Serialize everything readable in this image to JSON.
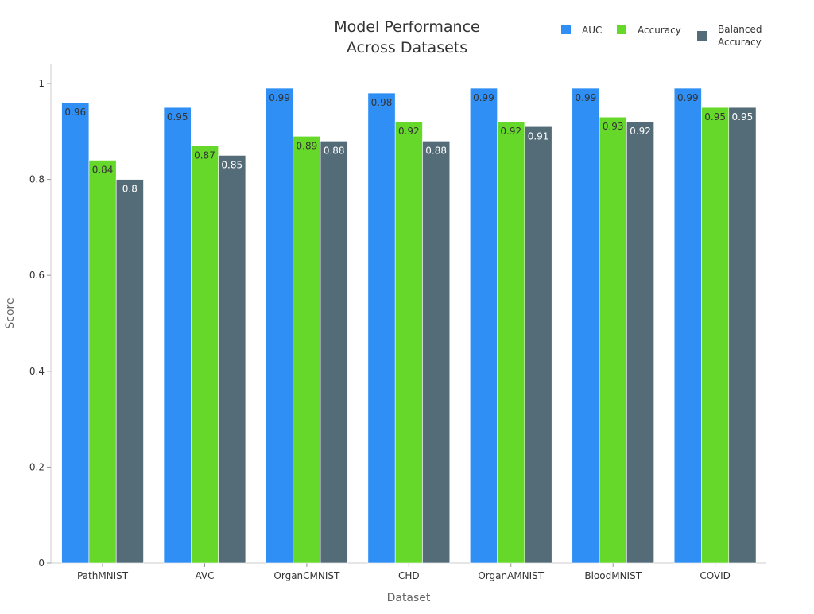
{
  "chart_data": {
    "type": "bar",
    "title_lines": [
      "Model Performance",
      "Across Datasets"
    ],
    "xlabel": "Dataset",
    "ylabel": "Score",
    "ylim": [
      0,
      1
    ],
    "yticks": [
      {
        "value": 0,
        "label": "0"
      },
      {
        "value": 0.2,
        "label": "0.2"
      },
      {
        "value": 0.4,
        "label": "0.4"
      },
      {
        "value": 0.6,
        "label": "0.6"
      },
      {
        "value": 0.8,
        "label": "0.8"
      },
      {
        "value": 1,
        "label": "1"
      }
    ],
    "grid": false,
    "legend_position": "top-right",
    "categories": [
      "PathMNIST",
      "AVC",
      "OrganCMNIST",
      "CHD",
      "OrganAMNIST",
      "BloodMNIST",
      "COVID"
    ],
    "series": [
      {
        "name": "AUC",
        "color": "#2f8ff5",
        "label_color": "#333333",
        "legend_lines": [
          "AUC"
        ],
        "values": [
          0.96,
          0.95,
          0.99,
          0.98,
          0.99,
          0.99,
          0.99
        ],
        "labels": [
          "0.96",
          "0.95",
          "0.99",
          "0.98",
          "0.99",
          "0.99",
          "0.99"
        ]
      },
      {
        "name": "Accuracy",
        "color": "#66d82a",
        "label_color": "#333333",
        "legend_lines": [
          "Accuracy"
        ],
        "values": [
          0.84,
          0.87,
          0.89,
          0.92,
          0.92,
          0.93,
          0.95
        ],
        "labels": [
          "0.84",
          "0.87",
          "0.89",
          "0.92",
          "0.92",
          "0.93",
          "0.95"
        ]
      },
      {
        "name": "Balanced Accuracy",
        "color": "#546c78",
        "label_color": "#ffffff",
        "legend_lines": [
          "Balanced",
          "Accuracy"
        ],
        "values": [
          0.8,
          0.85,
          0.88,
          0.88,
          0.91,
          0.92,
          0.95
        ],
        "labels": [
          "0.8",
          "0.85",
          "0.88",
          "0.88",
          "0.91",
          "0.92",
          "0.95"
        ]
      }
    ]
  }
}
